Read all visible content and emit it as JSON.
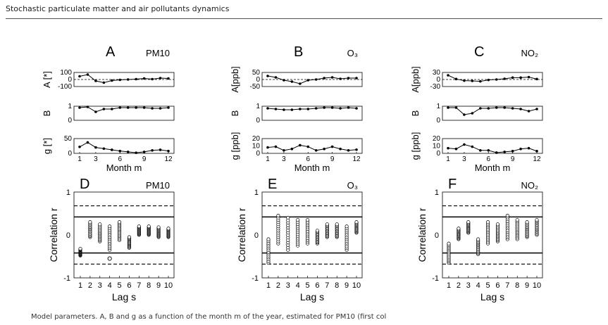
{
  "running_head": "Stochastic particulate matter and air pollutants dynamics",
  "caption": "Model parameters. A, B and g as a function of the month m of the year, estimated for PM10 (first col",
  "chart_data": [
    {
      "type": "line",
      "panel": "A",
      "title": "PM10",
      "xlabel": "Month m",
      "rows": [
        {
          "ylabel": "A [*]",
          "ticks": [
            "100",
            "0",
            "-100"
          ],
          "ylim": [
            -100,
            100
          ],
          "ref_line": 0,
          "x": [
            1,
            2,
            3,
            4,
            5,
            6,
            7,
            8,
            9,
            10,
            11,
            12
          ],
          "values": [
            45,
            70,
            -20,
            -45,
            -15,
            -5,
            0,
            5,
            15,
            5,
            20,
            15
          ]
        },
        {
          "ylabel": "B",
          "ticks": [
            "1",
            "0"
          ],
          "ylim": [
            0,
            1
          ],
          "x": [
            1,
            2,
            3,
            4,
            5,
            6,
            7,
            8,
            9,
            10,
            11,
            12
          ],
          "values": [
            0.9,
            0.95,
            0.6,
            0.8,
            0.8,
            0.9,
            0.9,
            0.9,
            0.9,
            0.85,
            0.85,
            0.9
          ]
        },
        {
          "ylabel": "g [*]",
          "ticks": [
            "50",
            "0"
          ],
          "ylim": [
            0,
            50
          ],
          "x": [
            1,
            2,
            3,
            4,
            5,
            6,
            7,
            8,
            9,
            10,
            11,
            12
          ],
          "values": [
            22,
            37,
            20,
            16,
            12,
            8,
            5,
            2,
            5,
            10,
            12,
            8
          ]
        }
      ],
      "xticks": [
        "1",
        "3",
        "6",
        "9",
        "12"
      ]
    },
    {
      "type": "line",
      "panel": "B",
      "title": "O₃",
      "xlabel": "Month m",
      "rows": [
        {
          "ylabel": "A[ppb]",
          "ticks": [
            "50",
            "0",
            "-50"
          ],
          "ylim": [
            -50,
            50
          ],
          "ref_line": 0,
          "x": [
            1,
            2,
            3,
            4,
            5,
            6,
            7,
            8,
            9,
            10,
            11,
            12
          ],
          "values": [
            25,
            15,
            -5,
            -15,
            -30,
            -5,
            0,
            10,
            15,
            5,
            10,
            10
          ]
        },
        {
          "ylabel": "B",
          "ticks": [
            "1",
            "0"
          ],
          "ylim": [
            0,
            1
          ],
          "x": [
            1,
            2,
            3,
            4,
            5,
            6,
            7,
            8,
            9,
            10,
            11,
            12
          ],
          "values": [
            0.85,
            0.8,
            0.75,
            0.75,
            0.8,
            0.8,
            0.85,
            0.9,
            0.9,
            0.85,
            0.9,
            0.85
          ]
        },
        {
          "ylabel": "g [ppb]",
          "ticks": [
            "20",
            "10",
            "0"
          ],
          "ylim": [
            0,
            20
          ],
          "x": [
            1,
            2,
            3,
            4,
            5,
            6,
            7,
            8,
            9,
            10,
            11,
            12
          ],
          "values": [
            8,
            9,
            4,
            6,
            11,
            9,
            4,
            6,
            9,
            6,
            4,
            5
          ]
        }
      ],
      "xticks": [
        "1",
        "3",
        "6",
        "9",
        "12"
      ]
    },
    {
      "type": "line",
      "panel": "C",
      "title": "NO₂",
      "xlabel": "Month m",
      "rows": [
        {
          "ylabel": "A[ppb]",
          "ticks": [
            "30",
            "0",
            "-30"
          ],
          "ylim": [
            -30,
            30
          ],
          "ref_line": 0,
          "x": [
            1,
            2,
            3,
            4,
            5,
            6,
            7,
            8,
            9,
            10,
            11,
            12
          ],
          "values": [
            18,
            2,
            -5,
            -6,
            -8,
            -2,
            0,
            3,
            8,
            8,
            10,
            2
          ]
        },
        {
          "ylabel": "B",
          "ticks": [
            "1",
            "0"
          ],
          "ylim": [
            0,
            1
          ],
          "x": [
            1,
            2,
            3,
            4,
            5,
            6,
            7,
            8,
            9,
            10,
            11,
            12
          ],
          "values": [
            0.9,
            0.9,
            0.4,
            0.5,
            0.85,
            0.85,
            0.9,
            0.9,
            0.85,
            0.8,
            0.65,
            0.8
          ]
        },
        {
          "ylabel": "g [ppb]",
          "ticks": [
            "20",
            "10",
            "0"
          ],
          "ylim": [
            0,
            20
          ],
          "x": [
            1,
            2,
            3,
            4,
            5,
            6,
            7,
            8,
            9,
            10,
            11,
            12
          ],
          "values": [
            7,
            6,
            12,
            9,
            4,
            4,
            1,
            2,
            3,
            6,
            7,
            3
          ]
        }
      ],
      "xticks": [
        "1",
        "3",
        "6",
        "9",
        "12"
      ]
    },
    {
      "type": "scatter",
      "panel": "D",
      "title": "PM10",
      "xlabel": "Lag s",
      "ylabel": "Correlation r",
      "ylim": [
        -1,
        1
      ],
      "yticks": [
        "1",
        "0",
        "-1"
      ],
      "xticks": [
        "1",
        "2",
        "3",
        "4",
        "5",
        "6",
        "7",
        "8",
        "9",
        "10"
      ],
      "solid_lines": [
        0.42,
        -0.42
      ],
      "dashed_lines": [
        0.68,
        -0.68
      ],
      "lags": [
        {
          "lag": 1,
          "min": -0.48,
          "max": -0.32
        },
        {
          "lag": 2,
          "min": -0.05,
          "max": 0.3
        },
        {
          "lag": 3,
          "min": -0.15,
          "max": 0.25
        },
        {
          "lag": 4,
          "min": -0.35,
          "max": 0.2,
          "outlier": -0.55
        },
        {
          "lag": 5,
          "min": -0.12,
          "max": 0.3
        },
        {
          "lag": 6,
          "min": -0.3,
          "max": -0.05
        },
        {
          "lag": 7,
          "min": 0.0,
          "max": 0.2
        },
        {
          "lag": 8,
          "min": 0.0,
          "max": 0.2
        },
        {
          "lag": 9,
          "min": -0.05,
          "max": 0.18
        },
        {
          "lag": 10,
          "min": -0.05,
          "max": 0.15
        }
      ]
    },
    {
      "type": "scatter",
      "panel": "E",
      "title": "O₃",
      "xlabel": "Lag s",
      "ylabel": "Correlation r",
      "ylim": [
        -1,
        1
      ],
      "yticks": [
        "1",
        "0",
        "-1"
      ],
      "xticks": [
        "1",
        "2",
        "3",
        "4",
        "5",
        "6",
        "7",
        "8",
        "9",
        "10"
      ],
      "solid_lines": [
        0.42,
        -0.42
      ],
      "dashed_lines": [
        0.68,
        -0.68
      ],
      "lags": [
        {
          "lag": 1,
          "min": -0.65,
          "max": -0.1
        },
        {
          "lag": 2,
          "min": -0.2,
          "max": 0.45
        },
        {
          "lag": 3,
          "min": -0.35,
          "max": 0.4
        },
        {
          "lag": 4,
          "min": -0.25,
          "max": 0.35
        },
        {
          "lag": 5,
          "min": -0.2,
          "max": 0.35
        },
        {
          "lag": 6,
          "min": -0.2,
          "max": 0.1
        },
        {
          "lag": 7,
          "min": -0.05,
          "max": 0.25
        },
        {
          "lag": 8,
          "min": -0.05,
          "max": 0.25
        },
        {
          "lag": 9,
          "min": -0.35,
          "max": 0.2
        },
        {
          "lag": 10,
          "min": 0.05,
          "max": 0.3
        }
      ]
    },
    {
      "type": "scatter",
      "panel": "F",
      "title": "NO₂",
      "xlabel": "Lag s",
      "ylabel": "Correlation r",
      "ylim": [
        -1,
        1
      ],
      "yticks": [
        "1",
        "0",
        "-1"
      ],
      "xticks": [
        "1",
        "2",
        "3",
        "4",
        "5",
        "6",
        "7",
        "8",
        "9",
        "10"
      ],
      "solid_lines": [
        0.42,
        -0.42
      ],
      "dashed_lines": [
        0.68,
        -0.68
      ],
      "lags": [
        {
          "lag": 1,
          "min": -0.65,
          "max": -0.2
        },
        {
          "lag": 2,
          "min": -0.1,
          "max": 0.15
        },
        {
          "lag": 3,
          "min": 0.05,
          "max": 0.3
        },
        {
          "lag": 4,
          "min": -0.45,
          "max": -0.1
        },
        {
          "lag": 5,
          "min": -0.2,
          "max": 0.3
        },
        {
          "lag": 6,
          "min": -0.15,
          "max": 0.25
        },
        {
          "lag": 7,
          "min": -0.1,
          "max": 0.45
        },
        {
          "lag": 8,
          "min": -0.1,
          "max": 0.35
        },
        {
          "lag": 9,
          "min": -0.05,
          "max": 0.3
        },
        {
          "lag": 10,
          "min": 0.0,
          "max": 0.35
        }
      ]
    }
  ]
}
